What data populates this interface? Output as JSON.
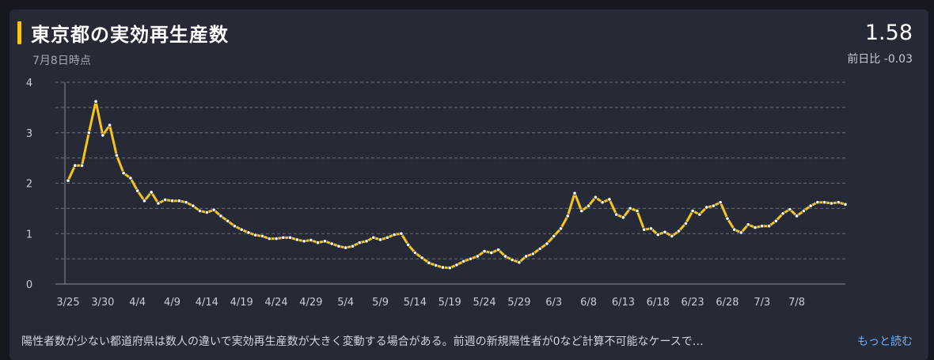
{
  "header": {
    "title": "東京都の実効再生産数",
    "as_of": "7月8日時点",
    "current_value": "1.58",
    "day_change": "前日比 -0.03"
  },
  "footer": {
    "note": "陽性者数が少ない都道府県は数人の違いで実効再生産数が大きく変動する場合がある。前週の新規陽性者が0など計算不可能なケースで…",
    "read_more": "もっと読む"
  },
  "colors": {
    "background": "#262a36",
    "line": "#f5c518",
    "accent": "#f5c518",
    "grid": "#6b6f7a",
    "link": "#6fb1ff"
  },
  "chart_data": {
    "type": "line",
    "title": "東京都の実効再生産数",
    "xlabel": "",
    "ylabel": "",
    "ylim": [
      0,
      4
    ],
    "yticks": [
      "0",
      "1",
      "2",
      "3",
      "4"
    ],
    "grid": true,
    "grid_style": "dashed, every 0.5",
    "xticks": [
      "3/25",
      "3/30",
      "4/4",
      "4/9",
      "4/14",
      "4/19",
      "4/24",
      "4/29",
      "5/4",
      "5/9",
      "5/14",
      "5/19",
      "5/24",
      "5/29",
      "6/3",
      "6/8",
      "6/13",
      "6/18",
      "6/23",
      "6/28",
      "7/3",
      "7/8"
    ],
    "x_start": "3/25",
    "series": [
      {
        "values": [
          2.05,
          2.35,
          2.35,
          3.0,
          3.62,
          2.95,
          3.15,
          2.55,
          2.2,
          2.1,
          1.85,
          1.65,
          1.82,
          1.6,
          1.67,
          1.65,
          1.65,
          1.62,
          1.55,
          1.45,
          1.42,
          1.47,
          1.35,
          1.25,
          1.15,
          1.08,
          1.02,
          0.97,
          0.95,
          0.9,
          0.9,
          0.92,
          0.92,
          0.88,
          0.85,
          0.87,
          0.82,
          0.85,
          0.8,
          0.75,
          0.72,
          0.75,
          0.82,
          0.85,
          0.92,
          0.88,
          0.92,
          0.98,
          1.0,
          0.78,
          0.62,
          0.52,
          0.42,
          0.37,
          0.33,
          0.32,
          0.38,
          0.45,
          0.5,
          0.55,
          0.65,
          0.62,
          0.68,
          0.55,
          0.48,
          0.43,
          0.55,
          0.6,
          0.7,
          0.8,
          0.95,
          1.1,
          1.35,
          1.8,
          1.45,
          1.55,
          1.72,
          1.62,
          1.68,
          1.38,
          1.32,
          1.5,
          1.45,
          1.08,
          1.1,
          0.98,
          1.03,
          0.95,
          1.05,
          1.2,
          1.45,
          1.38,
          1.52,
          1.55,
          1.62,
          1.3,
          1.08,
          1.02,
          1.18,
          1.12,
          1.15,
          1.15,
          1.25,
          1.4,
          1.48,
          1.35,
          1.45,
          1.55,
          1.62,
          1.62,
          1.6,
          1.62,
          1.58
        ]
      }
    ]
  }
}
